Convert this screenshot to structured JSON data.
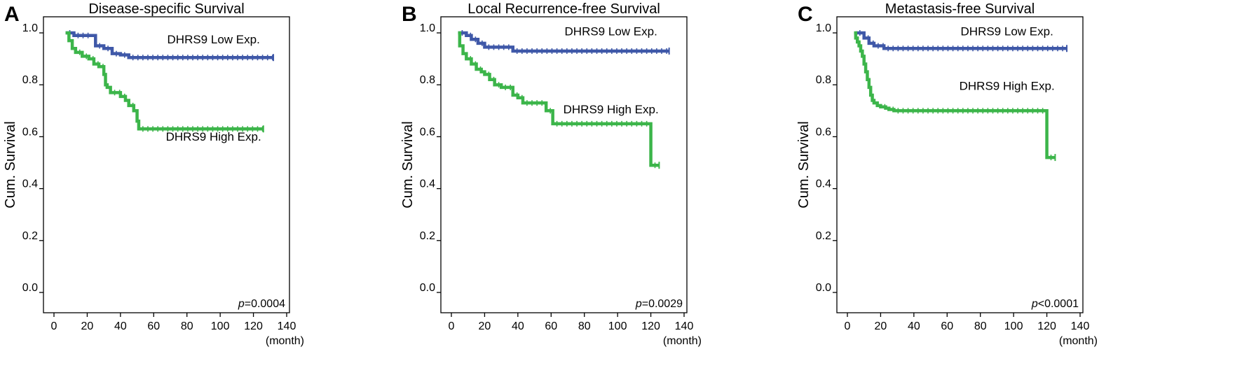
{
  "colors": {
    "low": "#3f58a8",
    "high": "#3cb54a"
  },
  "chart_data": [
    {
      "type": "line",
      "panel": "A",
      "title": "Disease-specific Survival",
      "ylabel": "Cum. Survival",
      "xlabel": "(month)",
      "xlim": [
        0,
        140
      ],
      "ylim": [
        0.0,
        1.0
      ],
      "xticks": [
        "0",
        "20",
        "40",
        "60",
        "80",
        "100",
        "120",
        "140"
      ],
      "yticks": [
        "0.0",
        "0.2",
        "0.4",
        "0.6",
        "0.8",
        "1.0"
      ],
      "p_prefix": "p",
      "p_text": "=0.0004",
      "series": [
        {
          "name": "DHRS9 Low Exp.",
          "color": "#3f58a8",
          "x": [
            7,
            12,
            23,
            25,
            30,
            35,
            40,
            45,
            132
          ],
          "y": [
            1.0,
            0.99,
            0.99,
            0.95,
            0.94,
            0.92,
            0.915,
            0.905,
            0.905
          ],
          "label_pos": [
            96,
            0.96
          ]
        },
        {
          "name": "DHRS9 High Exp.",
          "color": "#3cb54a",
          "x": [
            7,
            9,
            11,
            13,
            17,
            21,
            24,
            27,
            30,
            31,
            32,
            34,
            40,
            43,
            45,
            48,
            50,
            51,
            126
          ],
          "y": [
            1.0,
            0.97,
            0.94,
            0.925,
            0.91,
            0.9,
            0.88,
            0.87,
            0.84,
            0.8,
            0.79,
            0.77,
            0.755,
            0.74,
            0.72,
            0.7,
            0.66,
            0.63,
            0.63
          ],
          "label_pos": [
            96,
            0.585
          ]
        }
      ]
    },
    {
      "type": "line",
      "panel": "B",
      "title": "Local Recurrence-free Survival",
      "ylabel": "Cum. Survival",
      "xlabel": "(month)",
      "xlim": [
        0,
        140
      ],
      "ylim": [
        0.0,
        1.0
      ],
      "xticks": [
        "0",
        "20",
        "40",
        "60",
        "80",
        "100",
        "120",
        "140"
      ],
      "yticks": [
        "0.0",
        "0.2",
        "0.4",
        "0.6",
        "0.8",
        "1.0"
      ],
      "p_prefix": "p",
      "p_text": "=0.0029",
      "series": [
        {
          "name": "DHRS9 Low Exp.",
          "color": "#3f58a8",
          "x": [
            4,
            9,
            12,
            16,
            20,
            37,
            131
          ],
          "y": [
            1.0,
            0.99,
            0.975,
            0.96,
            0.945,
            0.93,
            0.93
          ],
          "label_pos": [
            96,
            0.99
          ]
        },
        {
          "name": "DHRS9 High Exp.",
          "color": "#3cb54a",
          "x": [
            4,
            5,
            7,
            9,
            12,
            15,
            18,
            20,
            23,
            26,
            30,
            37,
            40,
            43,
            57,
            61,
            120,
            125
          ],
          "y": [
            1.0,
            0.95,
            0.92,
            0.9,
            0.88,
            0.86,
            0.85,
            0.84,
            0.82,
            0.8,
            0.79,
            0.76,
            0.75,
            0.73,
            0.7,
            0.65,
            0.49,
            0.49
          ],
          "label_pos": [
            96,
            0.69
          ]
        }
      ]
    },
    {
      "type": "line",
      "panel": "C",
      "title": "Metastasis-free Survival",
      "ylabel": "Cum. Survival",
      "xlabel": "(month)",
      "xlim": [
        0,
        140
      ],
      "ylim": [
        0.0,
        1.0
      ],
      "xticks": [
        "0",
        "20",
        "40",
        "60",
        "80",
        "100",
        "120",
        "140"
      ],
      "yticks": [
        "0.0",
        "0.2",
        "0.4",
        "0.6",
        "0.8",
        "1.0"
      ],
      "p_prefix": "p",
      "p_text": "<0.0001",
      "series": [
        {
          "name": "DHRS9 Low Exp.",
          "color": "#3f58a8",
          "x": [
            5,
            10,
            13,
            16,
            22,
            132
          ],
          "y": [
            1.0,
            0.98,
            0.96,
            0.95,
            0.94,
            0.94
          ],
          "label_pos": [
            96,
            0.99
          ]
        },
        {
          "name": "DHRS9 High Exp.",
          "color": "#3cb54a",
          "x": [
            4,
            5,
            6,
            7,
            8,
            9,
            10,
            11,
            12,
            13,
            14,
            15,
            16,
            18,
            20,
            23,
            25,
            28,
            120,
            125
          ],
          "y": [
            1.0,
            0.98,
            0.965,
            0.95,
            0.93,
            0.91,
            0.88,
            0.85,
            0.82,
            0.79,
            0.76,
            0.74,
            0.73,
            0.72,
            0.715,
            0.71,
            0.705,
            0.7,
            0.52,
            0.52
          ],
          "label_pos": [
            96,
            0.78
          ]
        }
      ]
    }
  ]
}
